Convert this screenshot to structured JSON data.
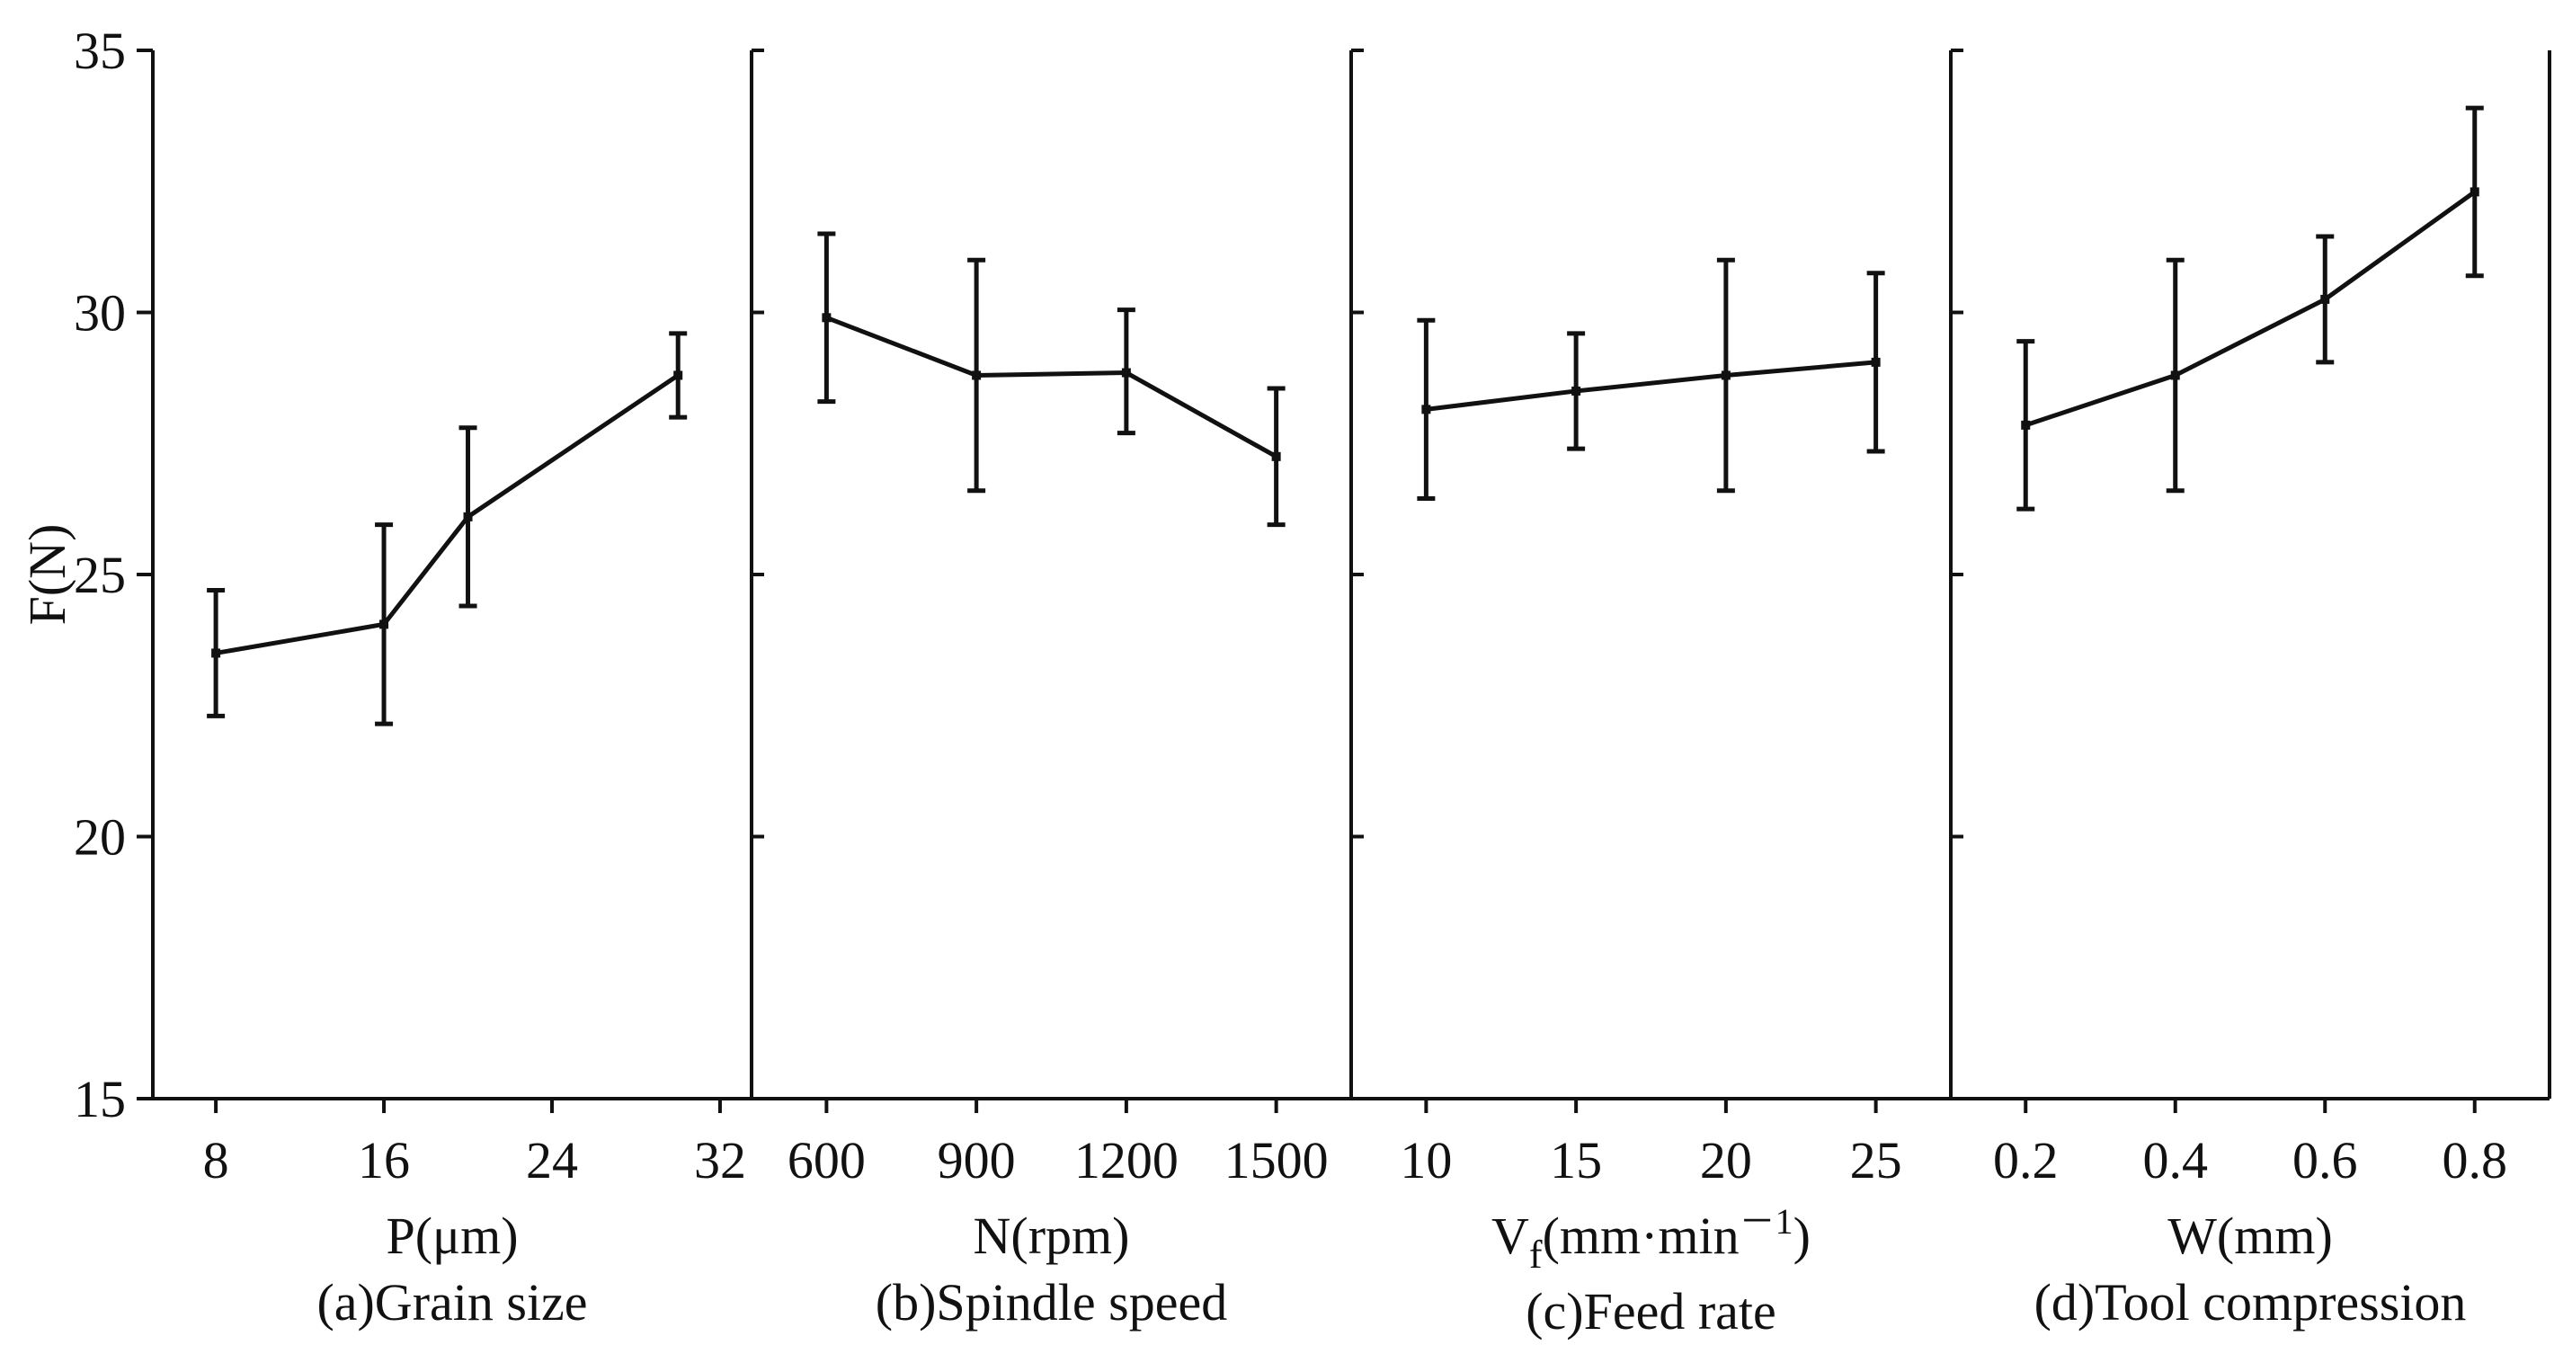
{
  "chart_data": {
    "type": "line",
    "y_axis": {
      "label": "F(N)",
      "ylim": [
        15,
        35
      ],
      "ticks": [
        15,
        20,
        25,
        30,
        35
      ],
      "tick_labels": [
        "15",
        "20",
        "25",
        "30",
        "35"
      ]
    },
    "panels": [
      {
        "id": "a",
        "xlabel": "P(μm)",
        "caption": "(a)Grain size",
        "xlim": [
          5,
          33.5
        ],
        "ticks": [
          8,
          16,
          24,
          32
        ],
        "tick_labels": [
          "8",
          "16",
          "24",
          "32"
        ],
        "x": [
          8,
          16,
          20,
          30
        ],
        "y": [
          23.5,
          24.05,
          26.1,
          28.8
        ],
        "err_low": [
          22.3,
          22.15,
          24.4,
          28.0
        ],
        "err_high": [
          24.7,
          25.95,
          27.8,
          29.6
        ]
      },
      {
        "id": "b",
        "xlabel": "N(rpm)",
        "caption": "(b)Spindle speed",
        "xlim": [
          450,
          1650
        ],
        "ticks": [
          600,
          900,
          1200,
          1500
        ],
        "tick_labels": [
          "600",
          "900",
          "1200",
          "1500"
        ],
        "x": [
          600,
          900,
          1200,
          1500
        ],
        "y": [
          29.9,
          28.8,
          28.85,
          27.25
        ],
        "err_low": [
          28.3,
          26.6,
          27.7,
          25.95
        ],
        "err_high": [
          31.5,
          31.0,
          30.05,
          28.55
        ]
      },
      {
        "id": "c",
        "xlabel_main": "V",
        "xlabel_sub": "f",
        "xlabel_rest": "(mm·min",
        "xlabel_sup": "－1",
        "xlabel_close": ")",
        "caption": "(c)Feed rate",
        "xlim": [
          7.5,
          27.5
        ],
        "ticks": [
          10,
          15,
          20,
          25
        ],
        "tick_labels": [
          "10",
          "15",
          "20",
          "25"
        ],
        "x": [
          10,
          15,
          20,
          25
        ],
        "y": [
          28.15,
          28.5,
          28.8,
          29.05
        ],
        "err_low": [
          26.45,
          27.4,
          26.6,
          27.35
        ],
        "err_high": [
          29.85,
          29.6,
          31.0,
          30.75
        ]
      },
      {
        "id": "d",
        "xlabel": "W(mm)",
        "caption": "(d)Tool compression",
        "xlim": [
          0.1,
          0.9
        ],
        "ticks": [
          0.2,
          0.4,
          0.6,
          0.8
        ],
        "tick_labels": [
          "0.2",
          "0.4",
          "0.6",
          "0.8"
        ],
        "x": [
          0.2,
          0.4,
          0.6,
          0.8
        ],
        "y": [
          27.85,
          28.8,
          30.25,
          32.3
        ],
        "err_low": [
          26.25,
          26.6,
          29.05,
          30.7
        ],
        "err_high": [
          29.45,
          31.0,
          31.45,
          33.9
        ]
      }
    ]
  }
}
